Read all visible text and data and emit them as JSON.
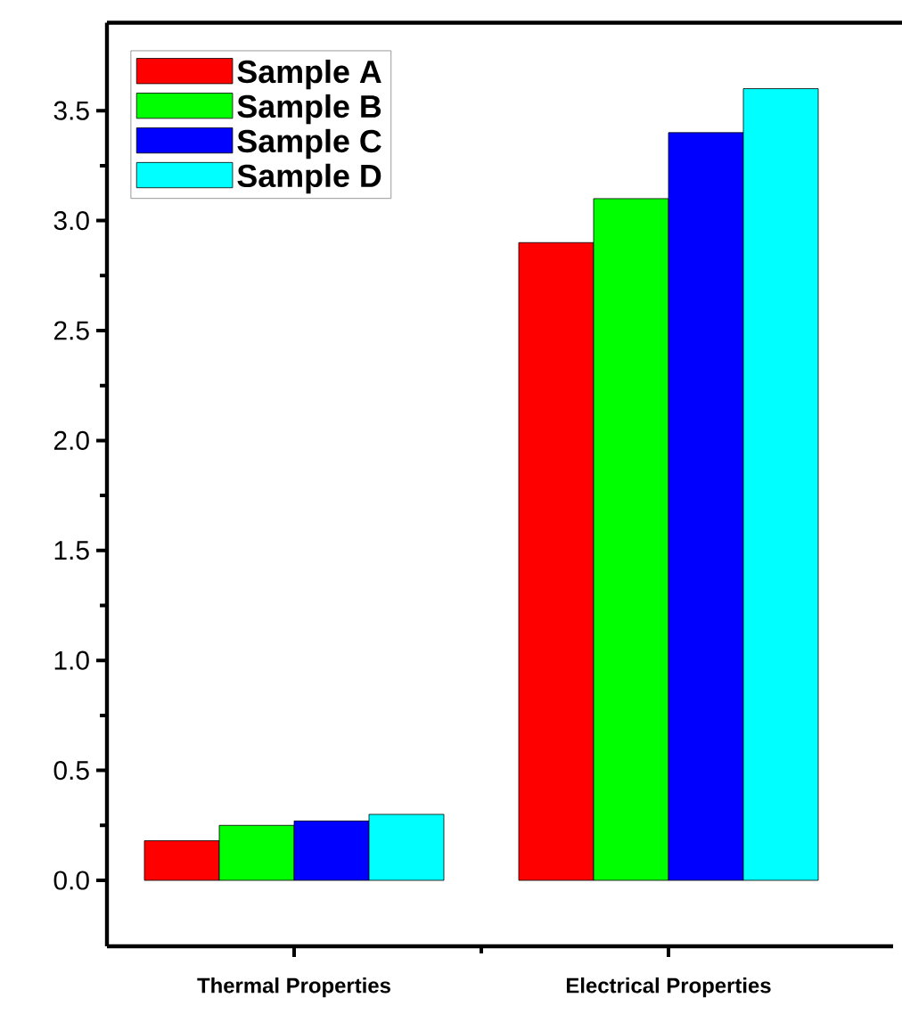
{
  "chart_data": {
    "type": "bar",
    "categories": [
      "Thermal Properties",
      "Electrical Properties"
    ],
    "series": [
      {
        "name": "Sample A",
        "color": "#ff0000",
        "values": [
          0.18,
          2.9
        ]
      },
      {
        "name": "Sample B",
        "color": "#00ff00",
        "values": [
          0.25,
          3.1
        ]
      },
      {
        "name": "Sample C",
        "color": "#0000ff",
        "values": [
          0.27,
          3.4
        ]
      },
      {
        "name": "Sample D",
        "color": "#00ffff",
        "values": [
          0.3,
          3.6
        ]
      }
    ],
    "ylim": [
      -0.3,
      3.9
    ],
    "yticks": [
      {
        "value": 0,
        "label": "0.0"
      },
      0.5,
      {
        "value": 1,
        "label": "1.0"
      },
      1.5,
      {
        "value": 2,
        "label": "2.0"
      },
      2.5,
      {
        "value": 3,
        "label": "3.0"
      },
      3.5
    ],
    "grid": false,
    "legend": "top left"
  }
}
